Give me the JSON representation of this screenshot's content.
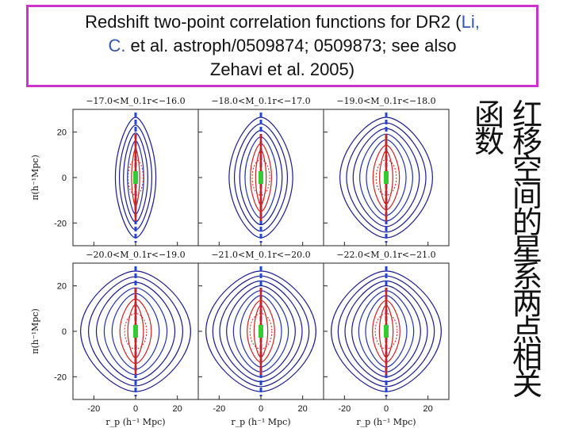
{
  "slide": {
    "title_part1": "Redshift two-point correlation functions for DR2 (",
    "title_li": "Li,",
    "title_c": "C.",
    "title_part2": " et al. astroph/0509874; 0509873; see also",
    "title_part3": "Zehavi et al. 2005)",
    "chinese_col1": "红移空间的星系两点相关",
    "chinese_col2": "函数",
    "colors": {
      "border": "#cc33cc",
      "accent": "#3355aa",
      "contour_outer": "#1a1a8c",
      "contour_mid": "#2233aa",
      "contour_inner": "#cc2222",
      "finger": "#2244dd",
      "core": "#33cc33"
    }
  },
  "chart_data": {
    "type": "contour",
    "panels": [
      {
        "label": "−17.0<M_0.1r<−16.0",
        "levels": 5,
        "width": 0.35
      },
      {
        "label": "−18.0<M_0.1r<−17.0",
        "levels": 6,
        "width": 0.55
      },
      {
        "label": "−19.0<M_0.1r<−18.0",
        "levels": 7,
        "width": 0.8
      },
      {
        "label": "−20.0<M_0.1r<−19.0",
        "levels": 7,
        "width": 0.95
      },
      {
        "label": "−21.0<M_0.1r<−20.0",
        "levels": 8,
        "width": 0.95
      },
      {
        "label": "−22.0<M_0.1r<−21.0",
        "levels": 8,
        "width": 0.95
      }
    ],
    "xlabel": "r_p (h^-1 Mpc)",
    "ylabel": "π(h^-1 Mpc)",
    "x_ticks": [
      "-20",
      "0",
      "20"
    ],
    "y_ticks": [
      "20",
      "0",
      "-20"
    ],
    "xlim": [
      -30,
      30
    ],
    "ylim": [
      -30,
      30
    ]
  }
}
